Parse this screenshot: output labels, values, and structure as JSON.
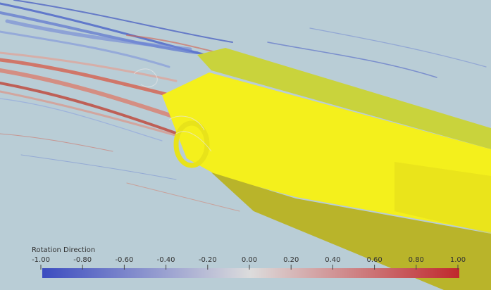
{
  "colorbar": {
    "title": "Rotation Direction",
    "ticks": [
      "-1.00",
      "-0.80",
      "-0.60",
      "-0.40",
      "-0.20",
      "0.00",
      "0.20",
      "0.40",
      "0.60",
      "0.80",
      "1.00"
    ]
  }
}
